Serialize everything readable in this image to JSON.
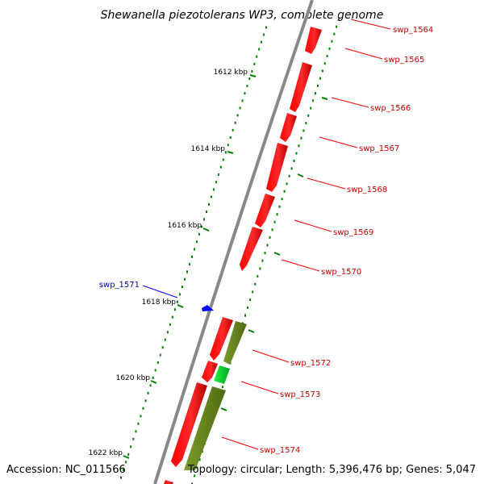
{
  "title": "Shewanella piezotolerans WP3, complete genome",
  "footer": {
    "accession": "Accession: NC_011566",
    "topology": "Topology: circular; Length: 5,396,476 bp; Genes: 5,047"
  },
  "colors": {
    "backbone": "#888888",
    "cds": "#ff0000",
    "tick": "#008000",
    "trna": "#00dd22",
    "other": "#6b8e23",
    "blue": "#0000ff",
    "label_red": "#cc0000",
    "label_blue": "#0000cc"
  },
  "scale_labels": [
    "1612 kbp",
    "1614 kbp",
    "1616 kbp",
    "1618 kbp",
    "1620 kbp",
    "1622 kbp"
  ],
  "gene_labels": [
    {
      "text": "swp_1564",
      "color": "red"
    },
    {
      "text": "swp_1565",
      "color": "red"
    },
    {
      "text": "swp_1566",
      "color": "red"
    },
    {
      "text": "swp_1567",
      "color": "red"
    },
    {
      "text": "swp_1568",
      "color": "red"
    },
    {
      "text": "swp_1569",
      "color": "red"
    },
    {
      "text": "swp_1570",
      "color": "red"
    },
    {
      "text": "swp_1571",
      "color": "blue"
    },
    {
      "text": "swp_1572",
      "color": "red"
    },
    {
      "text": "swp_1573",
      "color": "red"
    },
    {
      "text": "swp_1574",
      "color": "red"
    }
  ]
}
